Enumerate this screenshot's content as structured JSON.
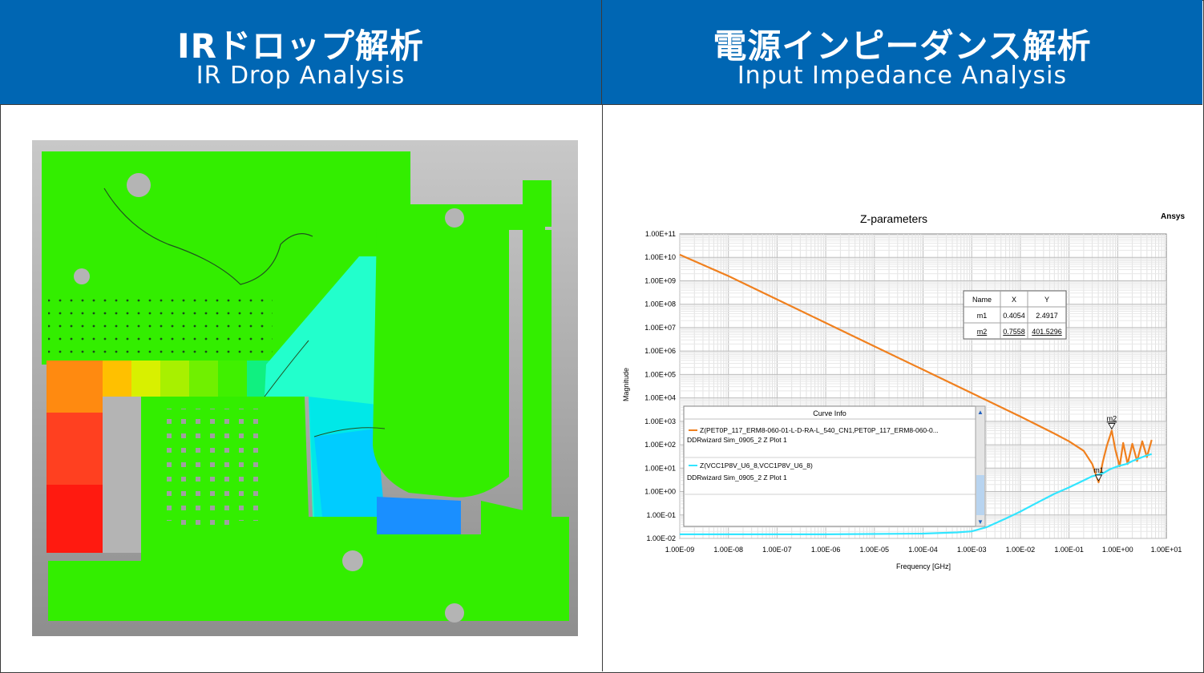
{
  "left_panel": {
    "title_jp": "IRドロップ解析",
    "title_en": "IR Drop Analysis"
  },
  "right_panel": {
    "title_jp": "電源インピーダンス解析",
    "title_en": "Input Impedance Analysis"
  },
  "colors": {
    "header_bg": "#0066b3",
    "board_gray": "#a8a8a8",
    "ir_green": "#33ee00",
    "series_orange": "#f0801e",
    "series_cyan": "#33e5ff"
  },
  "chart_data": {
    "type": "line",
    "title": "Z-parameters",
    "brand": "Ansys",
    "xlabel": "Frequency [GHz]",
    "ylabel": "Magnitude",
    "x_scale": "log",
    "y_scale": "log",
    "xlim": [
      1e-09,
      10
    ],
    "ylim": [
      0.01,
      100000000000.0
    ],
    "grid": true,
    "x_ticks": [
      "1.00E-09",
      "1.00E-08",
      "1.00E-07",
      "1.00E-06",
      "1.00E-05",
      "1.00E-04",
      "1.00E-03",
      "1.00E-02",
      "1.00E-01",
      "1.00E+00",
      "1.00E+01"
    ],
    "y_ticks": [
      "1.00E+11",
      "1.00E+10",
      "1.00E+09",
      "1.00E+08",
      "1.00E+07",
      "1.00E+06",
      "1.00E+05",
      "1.00E+04",
      "1.00E+03",
      "1.00E+02",
      "1.00E+01",
      "1.00E+00",
      "1.00E-01",
      "1.00E-02"
    ],
    "series": [
      {
        "name": "Z(PET0P_117_ERM8-060-01-L-D-RA-L_540_CN1,PET0P_117_ERM8-060-0...",
        "sub": "DDRwizard Sim_0905_2 Z Plot 1",
        "color": "#f0801e",
        "x": [
          1e-09,
          1e-08,
          1e-07,
          1e-06,
          1e-05,
          0.0001,
          0.001,
          0.01,
          0.05,
          0.1,
          0.2,
          0.3,
          0.4054,
          0.5,
          0.6,
          0.7558,
          0.9,
          1.1,
          1.3,
          1.6,
          2.0,
          2.5,
          3.2,
          4.0,
          5.0
        ],
        "y": [
          13000000000.0,
          1600000000.0,
          160000000.0,
          16000000.0,
          1600000.0,
          160000.0,
          16000.0,
          1600.0,
          300,
          140,
          55,
          15,
          2.49,
          20,
          90,
          401.5,
          60,
          12,
          120,
          15,
          110,
          20,
          140,
          30,
          160
        ]
      },
      {
        "name": "Z(VCC1P8V_U6_8,VCC1P8V_U6_8)",
        "sub": "DDRwizard Sim_0905_2 Z Plot 1",
        "color": "#33e5ff",
        "x": [
          1e-09,
          1e-06,
          0.0001,
          0.0005,
          0.001,
          0.002,
          0.005,
          0.01,
          0.02,
          0.05,
          0.1,
          0.2,
          0.3,
          0.5,
          0.7,
          1.0,
          1.5,
          2.0,
          3.0,
          4.0,
          5.0
        ],
        "y": [
          0.015,
          0.015,
          0.016,
          0.018,
          0.02,
          0.03,
          0.07,
          0.14,
          0.3,
          0.8,
          1.5,
          3.0,
          4.5,
          6,
          9,
          12,
          15,
          20,
          28,
          35,
          40
        ]
      }
    ],
    "markers_table": {
      "headers": [
        "Name",
        "X",
        "Y"
      ],
      "rows": [
        [
          "m1",
          "0.4054",
          "2.4917"
        ],
        [
          "m2",
          "0.7558",
          "401.5296"
        ]
      ]
    },
    "markers": [
      {
        "name": "m1",
        "x": 0.4054,
        "y": 2.4917
      },
      {
        "name": "m2",
        "x": 0.7558,
        "y": 401.5296
      }
    ],
    "legend_title": "Curve Info"
  }
}
